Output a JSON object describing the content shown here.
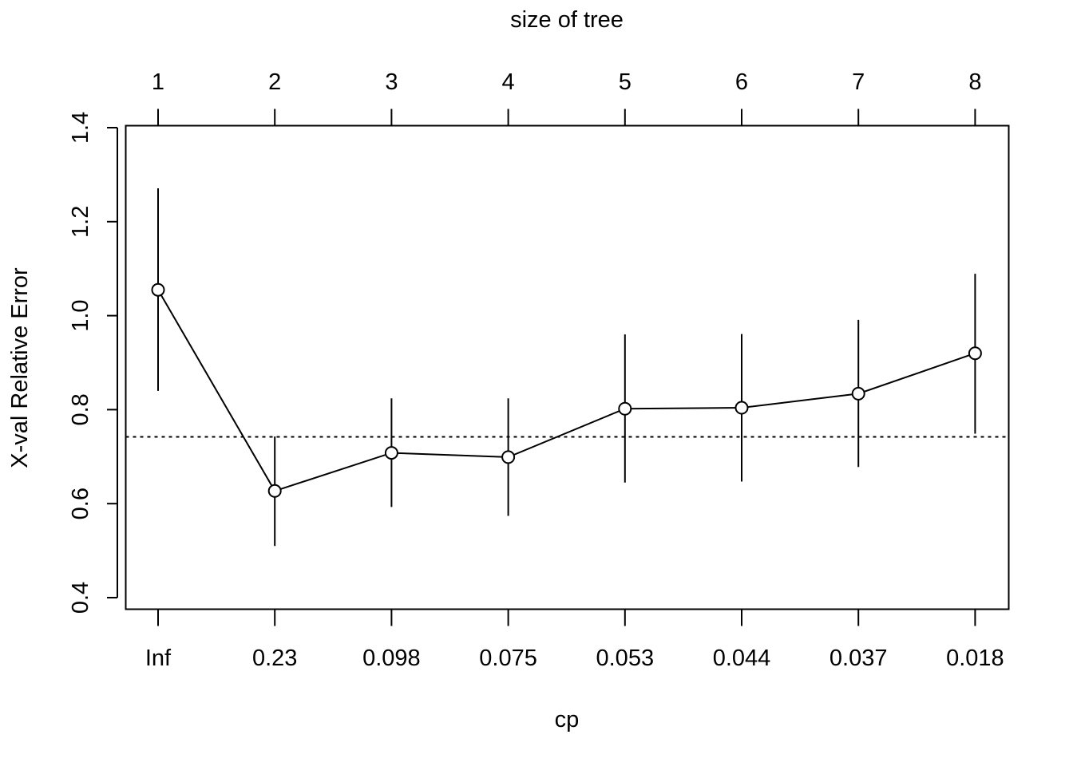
{
  "chart_data": {
    "type": "line",
    "subtype": "cp-plot-with-error-bars",
    "xlabel": "cp",
    "top_axis_label": "size of tree",
    "ylabel": "X-val Relative Error",
    "ylim": [
      0.4,
      1.4
    ],
    "yticks": [
      "0.4",
      "0.6",
      "0.8",
      "1.0",
      "1.2",
      "1.4"
    ],
    "cp_labels": [
      "Inf",
      "0.23",
      "0.098",
      "0.075",
      "0.053",
      "0.044",
      "0.037",
      "0.018"
    ],
    "tree_sizes": [
      "1",
      "2",
      "3",
      "4",
      "5",
      "6",
      "7",
      "8"
    ],
    "series": [
      {
        "values": [
          1.055,
          0.627,
          0.708,
          0.699,
          0.802,
          0.804,
          0.834,
          0.92
        ],
        "lower": [
          0.84,
          0.51,
          0.593,
          0.574,
          0.645,
          0.647,
          0.678,
          0.749
        ],
        "upper": [
          1.271,
          0.743,
          0.824,
          0.824,
          0.96,
          0.961,
          0.991,
          1.089
        ]
      }
    ],
    "reference_line": {
      "y": 0.742,
      "style": "dotted"
    },
    "grid": false,
    "legend": "none"
  }
}
